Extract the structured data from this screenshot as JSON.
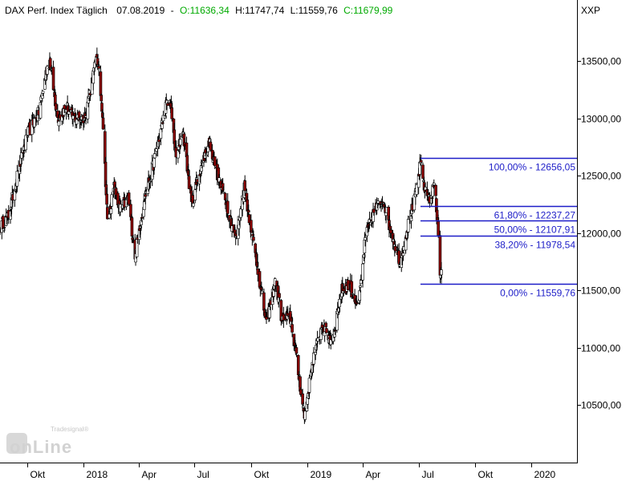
{
  "header": {
    "title": "DAX Perf. Index Täglich",
    "date": "07.08.2019",
    "open": "O:11636,34",
    "high": "H:11747,74",
    "low": "L:11559,76",
    "close": "C:11679,99",
    "separator": "-"
  },
  "symbol": "XXP",
  "watermark": {
    "small": "Tradesignal®",
    "big": "onLine"
  },
  "colors": {
    "fib": "#1d1dc8",
    "open_value": "#00aa00",
    "bear_candle": "#8b0000",
    "bull_candle": "#ffffff",
    "wick": "#000000",
    "axis": "#000000"
  },
  "chart_data": {
    "type": "candlestick",
    "title": "DAX Perf. Index Täglich",
    "xlabel": "",
    "ylabel": "",
    "ylim": [
      10000,
      13850
    ],
    "x_range": [
      "2017-08-18",
      "2020-03-15"
    ],
    "y_ticks": [
      {
        "value": 10500,
        "label": "10500,00"
      },
      {
        "value": 11000,
        "label": "11000,00"
      },
      {
        "value": 11500,
        "label": "11500,00"
      },
      {
        "value": 12000,
        "label": "12000,00"
      },
      {
        "value": 12500,
        "label": "12500,00"
      },
      {
        "value": 13000,
        "label": "13000,00"
      },
      {
        "value": 13500,
        "label": "13500,00"
      }
    ],
    "x_ticks": [
      {
        "date": "2017-10-01",
        "label": "Okt"
      },
      {
        "date": "2018-01-01",
        "label": "2018"
      },
      {
        "date": "2018-04-01",
        "label": "Apr"
      },
      {
        "date": "2018-07-01",
        "label": "Jul"
      },
      {
        "date": "2018-10-01",
        "label": "Okt"
      },
      {
        "date": "2019-01-01",
        "label": "2019"
      },
      {
        "date": "2019-04-01",
        "label": "Apr"
      },
      {
        "date": "2019-07-01",
        "label": "Jul"
      },
      {
        "date": "2019-10-01",
        "label": "Okt"
      },
      {
        "date": "2020-01-01",
        "label": "2020"
      }
    ],
    "series": [
      {
        "points": [
          {
            "date": "2017-08-18",
            "close": 12050
          },
          {
            "date": "2017-09-01",
            "close": 12150
          },
          {
            "date": "2017-09-15",
            "close": 12500
          },
          {
            "date": "2017-10-01",
            "close": 12850
          },
          {
            "date": "2017-10-15",
            "close": 13000
          },
          {
            "date": "2017-10-20",
            "close": 13050
          },
          {
            "date": "2017-11-03",
            "close": 13450
          },
          {
            "date": "2017-11-07",
            "close": 13500
          },
          {
            "date": "2017-11-20",
            "close": 13000
          },
          {
            "date": "2017-12-05",
            "close": 13100
          },
          {
            "date": "2017-12-15",
            "close": 13000
          },
          {
            "date": "2018-01-02",
            "close": 13000
          },
          {
            "date": "2018-01-12",
            "close": 13250
          },
          {
            "date": "2018-01-23",
            "close": 13550
          },
          {
            "date": "2018-02-01",
            "close": 13050
          },
          {
            "date": "2018-02-09",
            "close": 12100
          },
          {
            "date": "2018-02-20",
            "close": 12400
          },
          {
            "date": "2018-03-01",
            "close": 12200
          },
          {
            "date": "2018-03-15",
            "close": 12300
          },
          {
            "date": "2018-03-26",
            "close": 11800
          },
          {
            "date": "2018-04-10",
            "close": 12300
          },
          {
            "date": "2018-04-25",
            "close": 12600
          },
          {
            "date": "2018-05-15",
            "close": 13100
          },
          {
            "date": "2018-05-22",
            "close": 13150
          },
          {
            "date": "2018-06-01",
            "close": 12650
          },
          {
            "date": "2018-06-12",
            "close": 12900
          },
          {
            "date": "2018-06-26",
            "close": 12250
          },
          {
            "date": "2018-07-10",
            "close": 12550
          },
          {
            "date": "2018-07-25",
            "close": 12800
          },
          {
            "date": "2018-08-10",
            "close": 12450
          },
          {
            "date": "2018-08-20",
            "close": 12300
          },
          {
            "date": "2018-09-06",
            "close": 11950
          },
          {
            "date": "2018-09-20",
            "close": 12400
          },
          {
            "date": "2018-10-10",
            "close": 11750
          },
          {
            "date": "2018-10-26",
            "close": 11200
          },
          {
            "date": "2018-11-10",
            "close": 11600
          },
          {
            "date": "2018-11-20",
            "close": 11250
          },
          {
            "date": "2018-12-05",
            "close": 11250
          },
          {
            "date": "2018-12-14",
            "close": 10900
          },
          {
            "date": "2018-12-27",
            "close": 10400
          },
          {
            "date": "2019-01-10",
            "close": 10900
          },
          {
            "date": "2019-01-25",
            "close": 11200
          },
          {
            "date": "2019-02-10",
            "close": 11050
          },
          {
            "date": "2019-02-25",
            "close": 11500
          },
          {
            "date": "2019-03-10",
            "close": 11550
          },
          {
            "date": "2019-03-25",
            "close": 11350
          },
          {
            "date": "2019-04-05",
            "close": 11950
          },
          {
            "date": "2019-04-20",
            "close": 12200
          },
          {
            "date": "2019-05-05",
            "close": 12300
          },
          {
            "date": "2019-05-15",
            "close": 12050
          },
          {
            "date": "2019-06-01",
            "close": 11750
          },
          {
            "date": "2019-06-15",
            "close": 12100
          },
          {
            "date": "2019-06-25",
            "close": 12300
          },
          {
            "date": "2019-07-04",
            "close": 12600
          },
          {
            "date": "2019-07-12",
            "close": 12350
          },
          {
            "date": "2019-07-22",
            "close": 12300
          },
          {
            "date": "2019-07-26",
            "close": 12450
          },
          {
            "date": "2019-08-01",
            "close": 12100
          },
          {
            "date": "2019-08-05",
            "close": 11650
          },
          {
            "date": "2019-08-07",
            "close": 11679.99
          }
        ]
      }
    ],
    "fibonacci": [
      {
        "level": "100,00%",
        "value": 12656.05,
        "label": "100,00% - 12656,05"
      },
      {
        "level": "61,80%",
        "value": 12237.27,
        "label": "61,80% - 12237,27"
      },
      {
        "level": "50,00%",
        "value": 12107.91,
        "label": "50,00% - 12107,91"
      },
      {
        "level": "38,20%",
        "value": 11978.54,
        "label": "38,20% - 11978,54"
      },
      {
        "level": "0,00%",
        "value": 11559.76,
        "label": "0,00% - 11559,76"
      }
    ],
    "fib_start_date": "2019-07-04",
    "fib_end_date": "2019-12-20",
    "last_bar": {
      "date": "2019-08-07",
      "open": 11636.34,
      "high": 11747.74,
      "low": 11559.76,
      "close": 11679.99
    },
    "grid": false,
    "legend": "none",
    "price_axis": "right"
  }
}
